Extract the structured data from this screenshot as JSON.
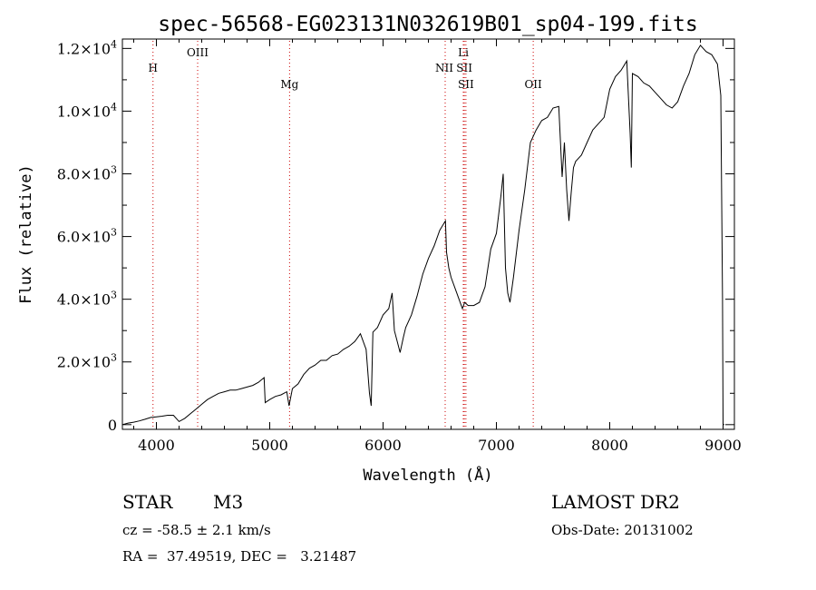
{
  "chart_data": {
    "type": "line",
    "title": "spec-56568-EG023131N032619B01_sp04-199.fits",
    "xlabel": "Wavelength (Å)",
    "ylabel": "Flux (relative)",
    "xlim": [
      3700,
      9100
    ],
    "ylim": [
      -150,
      12300
    ],
    "xticks": [
      4000,
      5000,
      6000,
      7000,
      8000,
      9000
    ],
    "yticks": [
      {
        "value": 0,
        "mant": "0",
        "exp": ""
      },
      {
        "value": 2000,
        "mant": "2.0×10",
        "exp": "3"
      },
      {
        "value": 4000,
        "mant": "4.0×10",
        "exp": "3"
      },
      {
        "value": 6000,
        "mant": "6.0×10",
        "exp": "3"
      },
      {
        "value": 8000,
        "mant": "8.0×10",
        "exp": "3"
      },
      {
        "value": 10000,
        "mant": "1.0×10",
        "exp": "4"
      },
      {
        "value": 12000,
        "mant": "1.2×10",
        "exp": "4"
      }
    ],
    "lines": [
      {
        "label": "H",
        "wavelength": 3970,
        "row": 0
      },
      {
        "label": "OIII",
        "wavelength": 4364,
        "row": -1
      },
      {
        "label": "Mg",
        "wavelength": 5175,
        "row": 1
      },
      {
        "label": "NII",
        "wavelength": 6548,
        "row": 0
      },
      {
        "label": "Li",
        "wavelength": 6708,
        "row": -1
      },
      {
        "label": "SII",
        "wavelength": 6717,
        "row": 0
      },
      {
        "label": "SII",
        "wavelength": 6731,
        "row": 1
      },
      {
        "label": "OII",
        "wavelength": 7325,
        "row": 1
      }
    ],
    "series": [
      {
        "x": [
          3700,
          3750,
          3800,
          3850,
          3900,
          3950,
          4000,
          4050,
          4100,
          4150,
          4200,
          4250,
          4300,
          4350,
          4400,
          4450,
          4500,
          4550,
          4600,
          4650,
          4700,
          4750,
          4800,
          4850,
          4900,
          4950,
          4960,
          5000,
          5050,
          5100,
          5150,
          5170,
          5200,
          5250,
          5300,
          5350,
          5400,
          5450,
          5500,
          5550,
          5600,
          5650,
          5700,
          5750,
          5800,
          5850,
          5880,
          5895,
          5910,
          5950,
          6000,
          6050,
          6080,
          6100,
          6150,
          6180,
          6200,
          6250,
          6300,
          6350,
          6400,
          6450,
          6500,
          6550,
          6560,
          6580,
          6600,
          6650,
          6700,
          6720,
          6750,
          6800,
          6850,
          6900,
          6950,
          7000,
          7040,
          7060,
          7080,
          7100,
          7120,
          7150,
          7200,
          7250,
          7300,
          7350,
          7400,
          7450,
          7500,
          7550,
          7580,
          7600,
          7620,
          7640,
          7660,
          7680,
          7700,
          7750,
          7800,
          7850,
          7900,
          7950,
          8000,
          8050,
          8100,
          8150,
          8180,
          8190,
          8200,
          8250,
          8300,
          8350,
          8400,
          8450,
          8500,
          8550,
          8600,
          8650,
          8700,
          8750,
          8800,
          8850,
          8900,
          8950,
          8980,
          8995,
          9000,
          9010
        ],
        "y": [
          0,
          50,
          80,
          120,
          170,
          230,
          250,
          270,
          300,
          300,
          100,
          200,
          350,
          500,
          650,
          800,
          900,
          1000,
          1050,
          1100,
          1100,
          1150,
          1200,
          1250,
          1350,
          1500,
          700,
          800,
          900,
          950,
          1050,
          600,
          1150,
          1300,
          1600,
          1800,
          1900,
          2050,
          2050,
          2200,
          2250,
          2400,
          2500,
          2650,
          2900,
          2400,
          1000,
          600,
          2950,
          3100,
          3500,
          3700,
          4200,
          3000,
          2300,
          2800,
          3100,
          3500,
          4100,
          4800,
          5300,
          5700,
          6200,
          6500,
          5500,
          5000,
          4700,
          4200,
          3700,
          3900,
          3800,
          3800,
          3900,
          4400,
          5600,
          6100,
          7300,
          8000,
          5000,
          4200,
          3900,
          4700,
          6200,
          7500,
          9000,
          9400,
          9700,
          9800,
          10100,
          10150,
          7900,
          9000,
          7500,
          6500,
          7400,
          8200,
          8400,
          8600,
          9000,
          9400,
          9600,
          9800,
          10700,
          11100,
          11300,
          11600,
          9300,
          8200,
          11200,
          11100,
          10900,
          10800,
          10600,
          10400,
          10200,
          10100,
          10300,
          10800,
          11200,
          11800,
          12100,
          11900,
          11800,
          11500,
          10500,
          4000,
          0,
          0
        ]
      }
    ]
  },
  "info": {
    "object_class": "STAR",
    "subclass": "M3",
    "survey": "LAMOST DR2",
    "redshift": "cz = -58.5 ± 2.1 km/s",
    "obs_date": "Obs-Date: 20131002",
    "coords": "RA =  37.49519, DEC =   3.21487"
  }
}
